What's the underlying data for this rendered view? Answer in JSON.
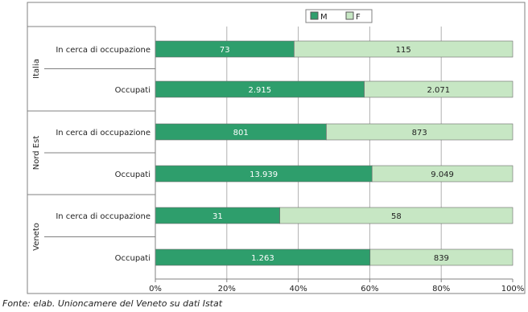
{
  "chart_data": {
    "type": "bar",
    "stacked": true,
    "percent": true,
    "orientation": "horizontal",
    "groups": [
      {
        "name": "Italia",
        "rows": [
          {
            "label": "In cerca di occupazione",
            "M": 73,
            "F": 115,
            "M_label": "73",
            "F_label": "115"
          },
          {
            "label": "Occupati",
            "M": 2915,
            "F": 2071,
            "M_label": "2.915",
            "F_label": "2.071"
          }
        ]
      },
      {
        "name": "Nord Est",
        "rows": [
          {
            "label": "In cerca di occupazione",
            "M": 801,
            "F": 873,
            "M_label": "801",
            "F_label": "873"
          },
          {
            "label": "Occupati",
            "M": 13939,
            "F": 9049,
            "M_label": "13.939",
            "F_label": "9.049"
          }
        ]
      },
      {
        "name": "Veneto",
        "rows": [
          {
            "label": "In cerca di occupazione",
            "M": 31,
            "F": 58,
            "M_label": "31",
            "F_label": "58"
          },
          {
            "label": "Occupati",
            "M": 1263,
            "F": 839,
            "M_label": "1.263",
            "F_label": "839"
          }
        ]
      }
    ],
    "series": [
      {
        "name": "M",
        "color": "#2e9e6c"
      },
      {
        "name": "F",
        "color": "#c7e7c4"
      }
    ],
    "x_ticks": [
      "0%",
      "20%",
      "40%",
      "60%",
      "80%",
      "100%"
    ],
    "xlim": [
      0,
      100
    ],
    "grid": true,
    "legend_position": "top"
  },
  "source": "Fonte: elab. Unioncamere del Veneto su dati Istat"
}
